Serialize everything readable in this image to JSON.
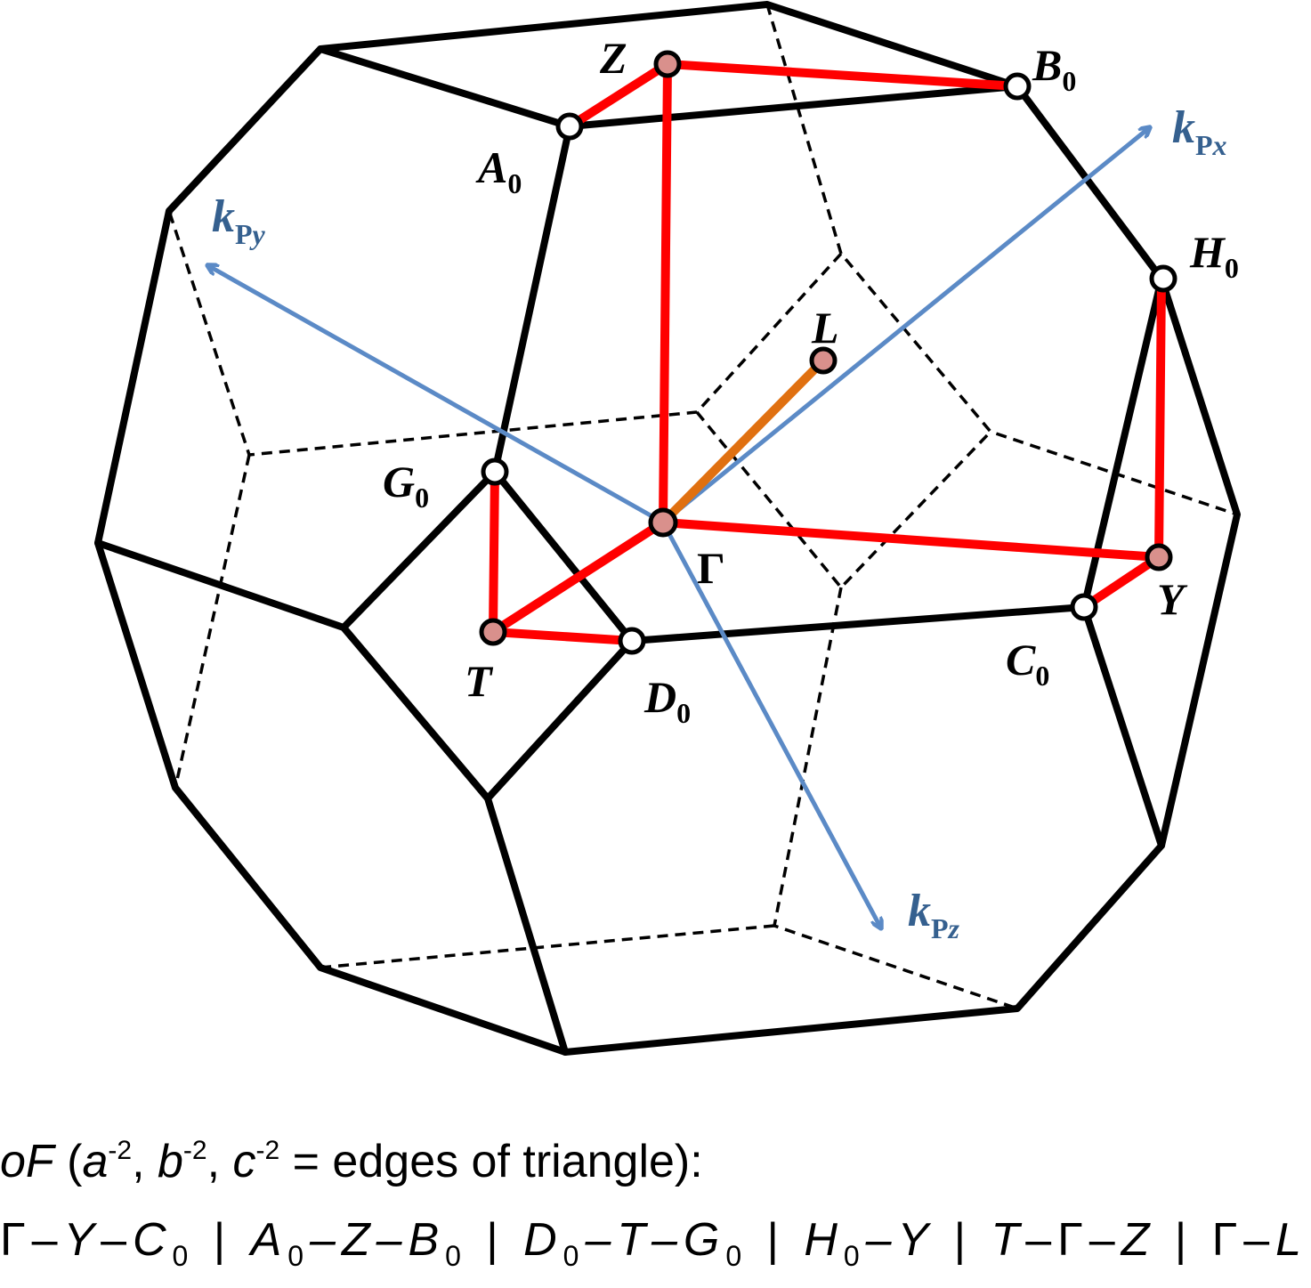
{
  "figure": {
    "axes": {
      "kx": {
        "base": "k",
        "sub": "P",
        "var": "x",
        "color": "#5b8ac6"
      },
      "ky": {
        "base": "k",
        "sub": "P",
        "var": "y",
        "color": "#5b8ac6"
      },
      "kz": {
        "base": "k",
        "sub": "P",
        "var": "z",
        "color": "#5b8ac6"
      }
    },
    "points": {
      "Z": {
        "main": "Z",
        "sub": ""
      },
      "B0": {
        "main": "B",
        "sub": "0"
      },
      "A0": {
        "main": "A",
        "sub": "0"
      },
      "H0": {
        "main": "H",
        "sub": "0"
      },
      "L": {
        "main": "L",
        "sub": ""
      },
      "G0": {
        "main": "G",
        "sub": "0"
      },
      "Gamma": {
        "main": "Γ",
        "sub": ""
      },
      "Y": {
        "main": "Y",
        "sub": ""
      },
      "C0": {
        "main": "C",
        "sub": "0"
      },
      "T": {
        "main": "T",
        "sub": ""
      },
      "D0": {
        "main": "D",
        "sub": "0"
      }
    },
    "colors": {
      "path": "#ff0000",
      "gamma_l_path": "#e07010",
      "special_point": "#d9908c",
      "open_point": "#ffffff",
      "edges": "#000000"
    }
  },
  "caption": {
    "line1": {
      "lattice": "oF",
      "open": " (",
      "a": "a",
      "a_exp": "-2",
      "sep1": ", ",
      "b": "b",
      "b_exp": "-2",
      "sep2": ", ",
      "c": "c",
      "c_exp": "-2",
      "rest": " = edges of triangle):"
    },
    "line2": {
      "s1a": "Γ–",
      "s1b": "Y",
      "s1c": "–",
      "s1d": "C",
      "s1d_sub": "0",
      "bar1": " | ",
      "s2a": "A",
      "s2a_sub": "0",
      "s2b": "–Z–",
      "s2c": "B",
      "s2c_sub": "0",
      "bar2": " | ",
      "s3a": "D",
      "s3a_sub": "0",
      "s3b": "–T–",
      "s3c": "G",
      "s3c_sub": "0",
      "bar3": " | ",
      "s4a": "H",
      "s4a_sub": "0",
      "s4b": "–Y",
      "bar4": " | ",
      "s5a": "T",
      "s5b": "–Γ–",
      "s5c": "Z",
      "bar5": " | ",
      "s6a": "Γ–",
      "s6b": "L"
    }
  }
}
